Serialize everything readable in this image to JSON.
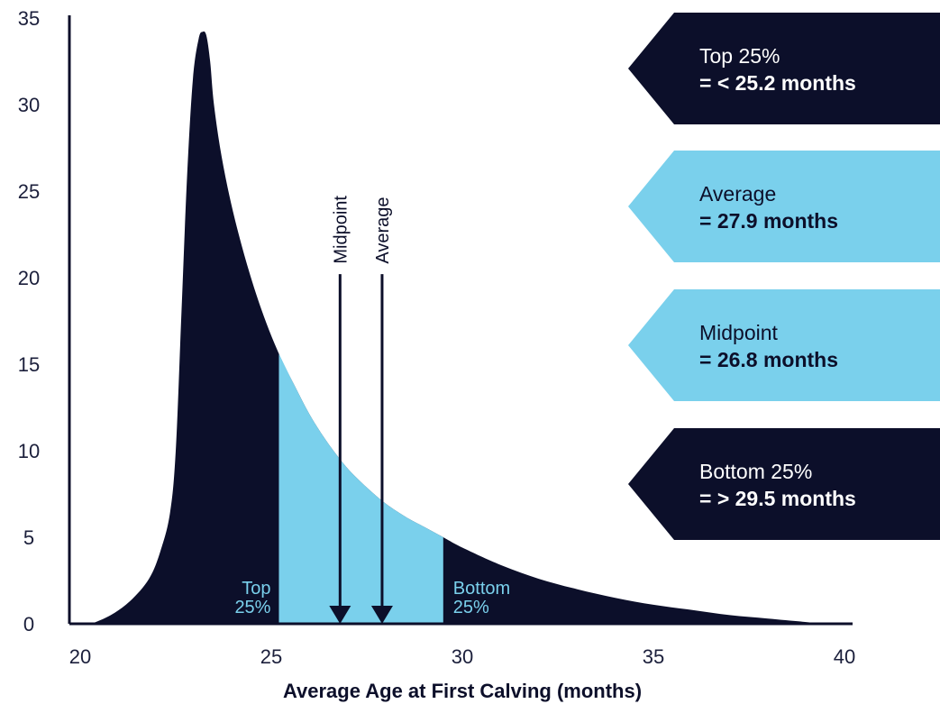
{
  "colors": {
    "dark": "#0c0f2a",
    "light": "#7ad0ec",
    "axis": "#0c0f2a",
    "text_dark": "#0c0f2a",
    "text_light": "#ffffff"
  },
  "chart_data": {
    "type": "area",
    "title": "",
    "xlabel": "Average Age at First Calving (months)",
    "ylabel": "",
    "xlim": [
      20,
      40
    ],
    "ylim": [
      0,
      35
    ],
    "x_ticks": [
      20,
      25,
      30,
      35,
      40
    ],
    "y_ticks": [
      0,
      5,
      10,
      15,
      20,
      25,
      30,
      35
    ],
    "x_tick_labels": [
      "20",
      "25",
      "30",
      "35",
      "40"
    ],
    "y_tick_labels": [
      "0",
      "5",
      "10",
      "15",
      "20",
      "25",
      "30",
      "35"
    ],
    "grid": false,
    "distribution": {
      "x": [
        20.3,
        20.8,
        21.3,
        21.8,
        22.1,
        22.35,
        22.5,
        22.65,
        22.8,
        22.95,
        23.1,
        23.2,
        23.3,
        23.4,
        23.5,
        23.7,
        24.0,
        24.4,
        24.8,
        25.2,
        25.6,
        26.0,
        26.4,
        26.8,
        27.2,
        27.9,
        28.5,
        29.0,
        29.5,
        30.0,
        31.0,
        32.0,
        33.0,
        34.0,
        35.0,
        36.0,
        37.0,
        38.0,
        39.0,
        39.5
      ],
      "y": [
        0.0,
        0.5,
        1.3,
        2.6,
        4.2,
        6.4,
        10.0,
        18.0,
        26.0,
        31.5,
        33.8,
        34.2,
        34.0,
        32.5,
        30.0,
        27.0,
        23.8,
        20.5,
        17.8,
        15.6,
        13.8,
        12.1,
        10.7,
        9.5,
        8.5,
        7.1,
        6.2,
        5.6,
        5.0,
        4.4,
        3.4,
        2.6,
        2.0,
        1.5,
        1.1,
        0.8,
        0.5,
        0.3,
        0.1,
        0.0
      ]
    },
    "regions": [
      {
        "from": 25.2,
        "to": 29.5,
        "color": "light"
      }
    ],
    "region_labels": [
      {
        "lines": [
          "Top",
          "25%"
        ],
        "x": 25.2,
        "y": 1.5,
        "anchor": "end",
        "color": "light"
      },
      {
        "lines": [
          "Bottom",
          "25%"
        ],
        "x": 29.5,
        "y": 1.5,
        "anchor": "start",
        "color": "light"
      }
    ],
    "markers": [
      {
        "name": "Midpoint",
        "x": 26.8,
        "label": "Midpoint"
      },
      {
        "name": "Average",
        "x": 27.9,
        "label": "Average"
      }
    ],
    "marker_top_y": 20.2,
    "marker_label_y": 20.8,
    "callouts": [
      {
        "label": "Top 25%",
        "value": "= < 25.2 months",
        "style": "dark"
      },
      {
        "label": "Average",
        "value": "= 27.9 months",
        "style": "light"
      },
      {
        "label": "Midpoint",
        "value": "= 26.8 months",
        "style": "light"
      },
      {
        "label": "Bottom 25%",
        "value": "= > 29.5 months",
        "style": "dark"
      }
    ]
  }
}
